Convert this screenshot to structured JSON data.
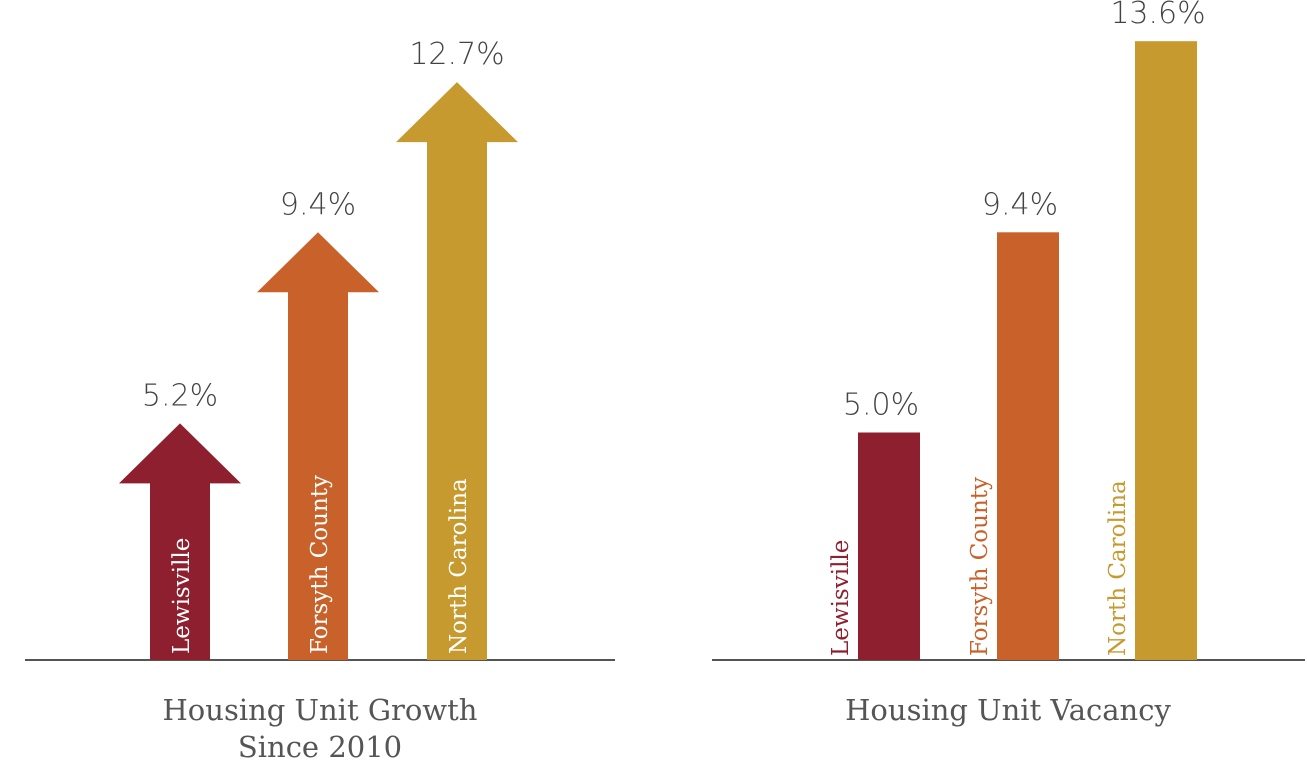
{
  "chart_data": [
    {
      "type": "arrow",
      "title": "Housing Unit Growth Since 2010",
      "categories": [
        "Lewisville",
        "Forsyth County",
        "North Carolina"
      ],
      "values": [
        5.2,
        9.4,
        12.7
      ],
      "value_labels": [
        "5.2%",
        "9.4%",
        "12.7%"
      ],
      "colors": [
        "#8e1f2f",
        "#c8622a",
        "#c79a30"
      ]
    },
    {
      "type": "bar",
      "title": "Housing Unit Vacancy",
      "categories": [
        "Lewisville",
        "Forsyth County",
        "North Carolina"
      ],
      "values": [
        5.0,
        9.4,
        13.6
      ],
      "value_labels": [
        "5.0%",
        "9.4%",
        "13.6%"
      ],
      "colors": [
        "#8e1f2f",
        "#c8622a",
        "#c79a30"
      ]
    }
  ]
}
